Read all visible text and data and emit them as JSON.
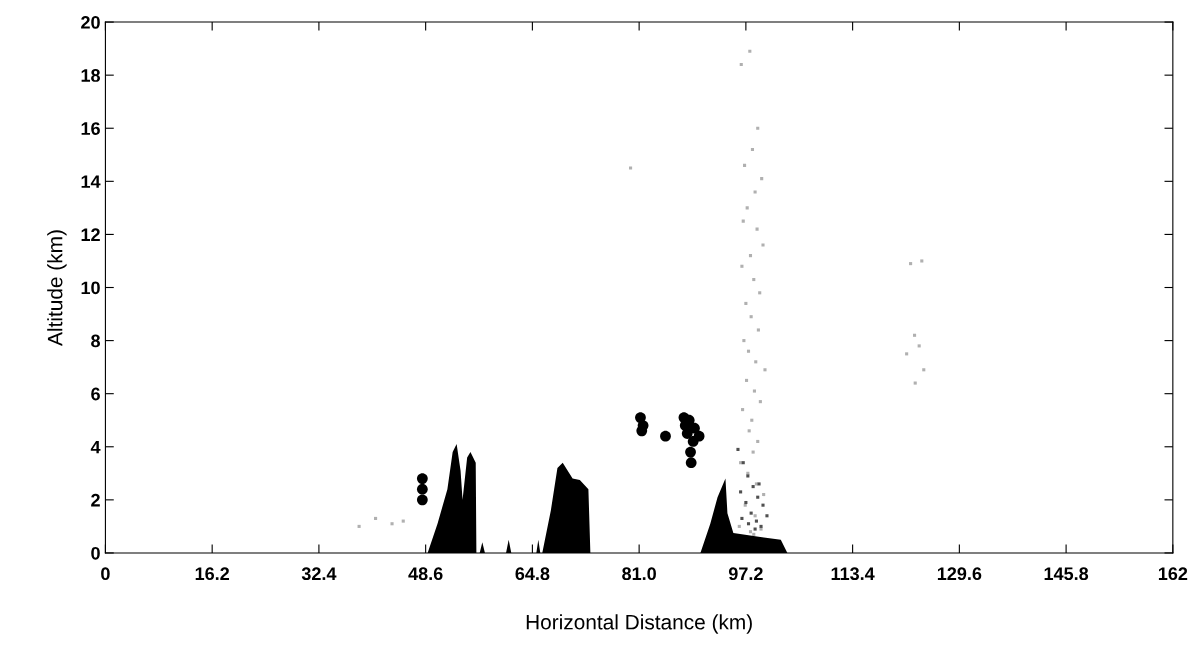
{
  "chart_data": {
    "type": "area",
    "xlabel": "Horizontal Distance (km)",
    "ylabel": "Altitude (km)",
    "xlim": [
      0,
      162
    ],
    "ylim": [
      0,
      20
    ],
    "xticks": [
      0,
      16.2,
      32.4,
      48.6,
      64.8,
      {
        "value": 81,
        "label": "81.0"
      },
      97.2,
      113.4,
      129.6,
      145.8,
      162
    ],
    "yticks": [
      0,
      2,
      4,
      6,
      8,
      10,
      12,
      14,
      16,
      18,
      20
    ],
    "grid": false,
    "legend": false,
    "series": [
      {
        "type": "scatter",
        "color": "#b0b0b0",
        "marker": "square",
        "x": [
          96.5,
          97.8,
          99.0,
          98.2,
          97.0,
          99.6,
          98.6,
          97.4,
          96.8,
          98.9,
          99.8,
          97.9,
          96.6,
          98.4,
          99.3,
          97.2,
          98.0,
          99.1,
          96.9,
          97.6,
          98.7,
          100.1,
          97.3,
          98.5,
          99.4,
          96.7,
          98.1,
          97.7,
          99.0,
          98.3,
          96.4,
          97.5,
          98.8,
          99.9,
          97.1,
          98.6,
          96.2,
          99.5,
          97.9,
          98.4,
          121.6,
          122.8,
          123.5,
          124.2,
          122.2,
          79.7,
          38.5,
          41.0,
          43.5,
          45.2,
          122.9,
          123.9
        ],
        "values": [
          18.4,
          18.9,
          16.0,
          15.2,
          14.6,
          14.1,
          13.6,
          13.0,
          12.5,
          12.2,
          11.6,
          11.2,
          10.8,
          10.3,
          9.8,
          9.4,
          8.9,
          8.4,
          8.0,
          7.6,
          7.2,
          6.9,
          6.5,
          6.1,
          5.7,
          5.4,
          5.0,
          4.6,
          4.2,
          3.8,
          3.4,
          3.0,
          2.6,
          2.2,
          1.8,
          1.4,
          1.0,
          0.9,
          0.8,
          0.7,
          7.5,
          8.2,
          7.8,
          6.9,
          10.9,
          14.5,
          1.0,
          1.3,
          1.1,
          1.2,
          6.4,
          11.0
        ]
      },
      {
        "type": "scatter",
        "color": "#505050",
        "marker": "square",
        "x": [
          96.0,
          96.8,
          97.5,
          98.3,
          99.0,
          99.8,
          96.4,
          97.2,
          98.0,
          98.8,
          99.5,
          100.4,
          97.6,
          98.6,
          96.6,
          99.2
        ],
        "values": [
          3.9,
          3.4,
          2.9,
          2.5,
          2.1,
          1.8,
          2.3,
          1.9,
          1.5,
          1.2,
          1.0,
          1.4,
          1.1,
          0.9,
          1.3,
          2.6
        ]
      },
      {
        "color": "#000000",
        "x": [
          48.9,
          50.4,
          51.9,
          52.7,
          53.3,
          53.9,
          54.2,
          54.9,
          55.4,
          56.2,
          56.3,
          56.8,
          57.2,
          57.6,
          60.8,
          61.2,
          61.6,
          65.4,
          65.7,
          66.0,
          66.3,
          67.6,
          68.6,
          69.4,
          70.9,
          72.0,
          73.3,
          73.6,
          90.3,
          91.8,
          92.9,
          94.1,
          94.4,
          95.3,
          99.4,
          102.5,
          103.5
        ],
        "values": [
          0,
          1.1,
          2.4,
          3.8,
          4.1,
          3.1,
          2.0,
          3.6,
          3.8,
          3.4,
          0,
          0,
          0.4,
          0,
          0,
          0.5,
          0,
          0,
          0.5,
          0,
          0,
          1.6,
          3.2,
          3.4,
          2.8,
          2.75,
          2.4,
          0,
          0,
          1.1,
          2.1,
          2.8,
          1.5,
          0.75,
          0.6,
          0.5,
          0
        ]
      },
      {
        "type": "scatter",
        "color": "#000000",
        "marker": "circle",
        "x": [
          48.1,
          48.1,
          48.1,
          81.2,
          81.6,
          81.4,
          85.0,
          87.8,
          88.6,
          89.4,
          90.1,
          88.3,
          89.2,
          88.8,
          88.9,
          88.0
        ],
        "values": [
          2.8,
          2.4,
          2.0,
          5.1,
          4.8,
          4.6,
          4.4,
          5.1,
          5.0,
          4.7,
          4.4,
          4.5,
          4.2,
          3.8,
          3.4,
          4.8
        ]
      }
    ]
  }
}
